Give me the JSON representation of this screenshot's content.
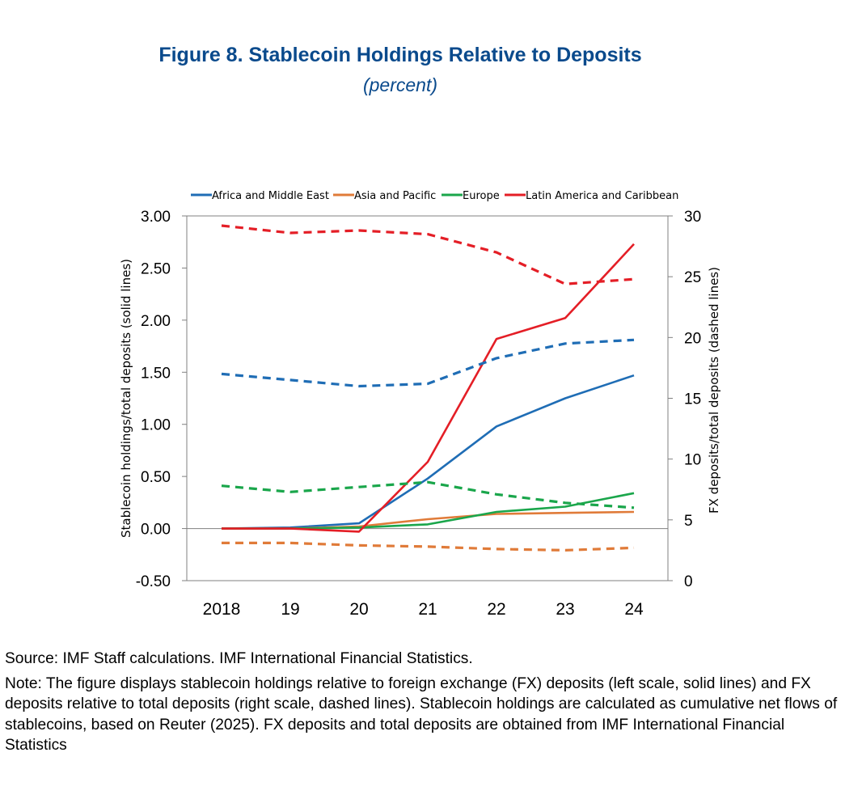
{
  "header": {
    "title": "Figure 8. Stablecoin Holdings Relative to Deposits",
    "subtitle": "(percent)",
    "title_color": "#0a4a8c"
  },
  "chart_data": {
    "type": "line",
    "title": "Figure 8. Stablecoin Holdings Relative to Deposits",
    "subtitle": "(percent)",
    "categories": [
      "2018",
      "19",
      "20",
      "21",
      "22",
      "23",
      "24"
    ],
    "xlabel": "",
    "ylabel_left": "Stablecoin holdings/total deposits (solid lines)",
    "ylabel_right": "FX deposits/total deposits (dashed lines)",
    "ylim_left": [
      -0.5,
      3.0
    ],
    "ylim_right": [
      0,
      30
    ],
    "yticks_left": [
      "3.00",
      "2.50",
      "2.00",
      "1.50",
      "1.00",
      "0.50",
      "0.00",
      "-0.50"
    ],
    "yticks_right": [
      "30",
      "25",
      "20",
      "15",
      "10",
      "5",
      "0"
    ],
    "legend_position": "top",
    "legend": [
      "Africa and Middle East",
      "Asia and Pacific",
      "Europe",
      "Latin America and Caribbean"
    ],
    "series": [
      {
        "name": "Africa and Middle East",
        "color": "#1f6db5",
        "axis": "left",
        "style": "solid",
        "legend": true,
        "values": [
          0.0,
          0.01,
          0.05,
          0.48,
          0.98,
          1.25,
          1.47
        ]
      },
      {
        "name": "Asia and Pacific",
        "color": "#e07b39",
        "axis": "left",
        "style": "solid",
        "legend": true,
        "values": [
          0.0,
          0.0,
          0.02,
          0.09,
          0.14,
          0.15,
          0.16
        ]
      },
      {
        "name": "Europe",
        "color": "#1aa64b",
        "axis": "left",
        "style": "solid",
        "legend": true,
        "values": [
          0.0,
          0.0,
          0.01,
          0.04,
          0.16,
          0.21,
          0.34
        ]
      },
      {
        "name": "Latin America and Caribbean",
        "color": "#e41e26",
        "axis": "left",
        "style": "solid",
        "legend": true,
        "values": [
          0.0,
          0.0,
          -0.03,
          0.64,
          1.82,
          2.02,
          2.73
        ]
      },
      {
        "name": "Africa and Middle East (FX deposits)",
        "color": "#1f6db5",
        "axis": "right",
        "style": "dashed",
        "legend": false,
        "values": [
          17.0,
          16.5,
          16.0,
          16.2,
          18.3,
          19.5,
          19.8
        ]
      },
      {
        "name": "Asia and Pacific (FX deposits)",
        "color": "#e07b39",
        "axis": "right",
        "style": "dashed",
        "legend": false,
        "values": [
          3.1,
          3.1,
          2.9,
          2.8,
          2.6,
          2.5,
          2.7
        ]
      },
      {
        "name": "Europe (FX deposits)",
        "color": "#1aa64b",
        "axis": "right",
        "style": "dashed",
        "legend": false,
        "values": [
          7.8,
          7.3,
          7.7,
          8.1,
          7.1,
          6.4,
          6.0
        ]
      },
      {
        "name": "Latin America and Caribbean (FX deposits)",
        "color": "#e41e26",
        "axis": "right",
        "style": "dashed",
        "legend": false,
        "values": [
          29.2,
          28.6,
          28.8,
          28.5,
          27.0,
          24.4,
          24.8
        ]
      }
    ]
  },
  "footer": {
    "source": "Source: IMF Staff calculations. IMF International Financial Statistics.",
    "note": "Note: The figure displays stablecoin holdings relative to foreign exchange (FX) deposits (left scale, solid lines) and FX deposits relative to total deposits (right scale, dashed lines). Stablecoin holdings are calculated as cumulative net flows of stablecoins, based on Reuter (2025). FX deposits and total deposits are obtained from IMF International Financial Statistics"
  }
}
